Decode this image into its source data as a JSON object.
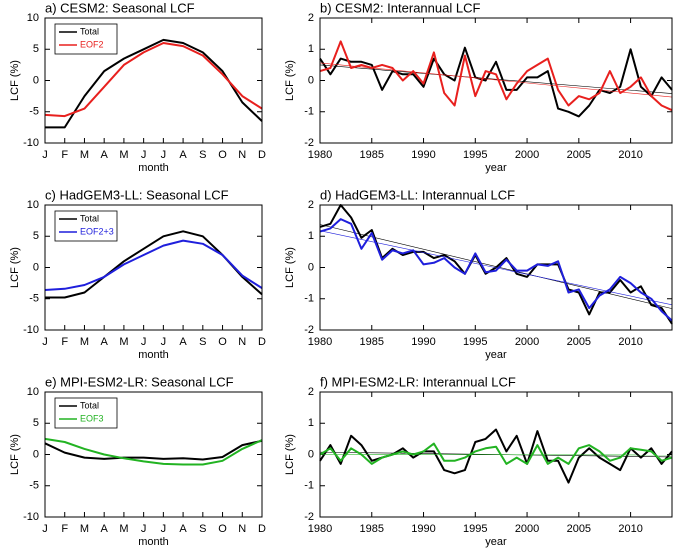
{
  "chart_data": [
    {
      "type": "line",
      "title": "a) CESM2: Seasonal LCF",
      "x_label": "month",
      "y_label": "LCF (%)",
      "categories": [
        "J",
        "F",
        "M",
        "A",
        "M",
        "J",
        "J",
        "A",
        "S",
        "O",
        "N",
        "D"
      ],
      "ylim": [
        -10,
        10
      ],
      "yticks": [
        -10,
        -5,
        0,
        5,
        10
      ],
      "series": [
        {
          "name": "Total",
          "color": "#000000",
          "values": [
            -7.5,
            -7.5,
            -2.5,
            1.5,
            3.5,
            5,
            6.5,
            6,
            4.5,
            1.5,
            -3.5,
            -6.5
          ]
        },
        {
          "name": "EOF2",
          "color": "#e8201e",
          "values": [
            -5.5,
            -5.7,
            -4.5,
            -1,
            2.5,
            4.5,
            6,
            5.5,
            4,
            1,
            -2.5,
            -4.5
          ]
        }
      ]
    },
    {
      "type": "line",
      "title": "b) CESM2: Interannual LCF",
      "x_label": "year",
      "y_label": "LCF (%)",
      "x": [
        1980,
        1981,
        1982,
        1983,
        1984,
        1985,
        1986,
        1987,
        1988,
        1989,
        1990,
        1991,
        1992,
        1993,
        1994,
        1995,
        1996,
        1997,
        1998,
        1999,
        2000,
        2001,
        2002,
        2003,
        2004,
        2005,
        2006,
        2007,
        2008,
        2009,
        2010,
        2011,
        2012,
        2013,
        2014
      ],
      "xlim": [
        1980,
        2014
      ],
      "xticks": [
        1980,
        1985,
        1990,
        1995,
        2000,
        2005,
        2010
      ],
      "ylim": [
        -2,
        2
      ],
      "yticks": [
        -2,
        -1,
        0,
        1,
        2
      ],
      "trend": true,
      "series": [
        {
          "color": "#000000",
          "values": [
            0.7,
            0.2,
            0.7,
            0.6,
            0.6,
            0.5,
            -0.3,
            0.3,
            0.2,
            0.2,
            -0.2,
            0.7,
            0.2,
            0.0,
            1.05,
            0.1,
            0.0,
            0.6,
            -0.3,
            -0.3,
            0.1,
            0.1,
            0.3,
            -0.9,
            -1.0,
            -1.15,
            -0.8,
            -0.3,
            -0.4,
            -0.2,
            1.0,
            -0.2,
            -0.5,
            0.1,
            -0.3
          ]
        },
        {
          "color": "#e8201e",
          "values": [
            0.3,
            0.4,
            1.25,
            0.4,
            0.5,
            0.4,
            0.5,
            0.4,
            0.0,
            0.3,
            -0.1,
            0.9,
            -0.4,
            -0.8,
            0.8,
            -0.5,
            0.3,
            0.2,
            -0.6,
            -0.1,
            0.3,
            0.5,
            0.7,
            -0.3,
            -0.8,
            -0.5,
            -0.6,
            -0.4,
            0.3,
            -0.4,
            -0.2,
            0.1,
            -0.5,
            -0.8,
            -0.95
          ]
        }
      ]
    },
    {
      "type": "line",
      "title": "c) HadGEM3-LL: Seasonal LCF",
      "x_label": "month",
      "y_label": "LCF (%)",
      "categories": [
        "J",
        "F",
        "M",
        "A",
        "M",
        "J",
        "J",
        "A",
        "S",
        "O",
        "N",
        "D"
      ],
      "ylim": [
        -10,
        10
      ],
      "yticks": [
        -10,
        -5,
        0,
        5,
        10
      ],
      "series": [
        {
          "name": "Total",
          "color": "#000000",
          "values": [
            -4.8,
            -4.8,
            -4,
            -1.5,
            1,
            3,
            5,
            5.8,
            5,
            2,
            -1.5,
            -4.3
          ]
        },
        {
          "name": "EOF2+3",
          "color": "#1f1fdc",
          "values": [
            -3.6,
            -3.4,
            -2.8,
            -1.5,
            0.5,
            2,
            3.5,
            4.3,
            3.8,
            2,
            -1.3,
            -3.3
          ]
        }
      ]
    },
    {
      "type": "line",
      "title": "d) HadGEM3-LL: Interannual LCF",
      "x_label": "year",
      "y_label": "LCF (%)",
      "x": [
        1980,
        1981,
        1982,
        1983,
        1984,
        1985,
        1986,
        1987,
        1988,
        1989,
        1990,
        1991,
        1992,
        1993,
        1994,
        1995,
        1996,
        1997,
        1998,
        1999,
        2000,
        2001,
        2002,
        2003,
        2004,
        2005,
        2006,
        2007,
        2008,
        2009,
        2010,
        2011,
        2012,
        2013,
        2014
      ],
      "xlim": [
        1980,
        2014
      ],
      "xticks": [
        1980,
        1985,
        1990,
        1995,
        2000,
        2005,
        2010
      ],
      "ylim": [
        -2,
        2
      ],
      "yticks": [
        -2,
        -1,
        0,
        1,
        2
      ],
      "trend": true,
      "series": [
        {
          "color": "#000000",
          "values": [
            1.3,
            1.4,
            2.0,
            1.6,
            0.95,
            1.2,
            0.3,
            0.6,
            0.4,
            0.5,
            0.5,
            0.3,
            0.4,
            0.2,
            -0.2,
            0.4,
            -0.2,
            0.0,
            0.3,
            -0.2,
            -0.3,
            0.1,
            0.1,
            0.1,
            -0.7,
            -0.8,
            -1.5,
            -0.8,
            -0.8,
            -0.4,
            -0.8,
            -0.6,
            -1.2,
            -1.3,
            -1.8
          ]
        },
        {
          "color": "#1f1fdc",
          "values": [
            1.15,
            1.25,
            1.55,
            1.4,
            0.6,
            1.1,
            0.25,
            0.55,
            0.45,
            0.55,
            0.1,
            0.15,
            0.3,
            0.0,
            -0.2,
            0.45,
            -0.15,
            -0.1,
            0.25,
            -0.1,
            -0.1,
            0.1,
            0.05,
            0.2,
            -0.8,
            -0.7,
            -1.3,
            -0.9,
            -0.7,
            -0.3,
            -0.5,
            -0.8,
            -1.0,
            -1.4,
            -1.7
          ]
        }
      ]
    },
    {
      "type": "line",
      "title": "e) MPI-ESM2-LR: Seasonal LCF",
      "x_label": "month",
      "y_label": "LCF (%)",
      "categories": [
        "J",
        "F",
        "M",
        "A",
        "M",
        "J",
        "J",
        "A",
        "S",
        "O",
        "N",
        "D"
      ],
      "ylim": [
        -10,
        10
      ],
      "yticks": [
        -10,
        -5,
        0,
        5,
        10
      ],
      "series": [
        {
          "name": "Total",
          "color": "#000000",
          "values": [
            1.8,
            0.3,
            -0.5,
            -0.7,
            -0.5,
            -0.5,
            -0.7,
            -0.6,
            -0.8,
            -0.4,
            1.5,
            2.2
          ]
        },
        {
          "name": "EOF3",
          "color": "#22b322",
          "values": [
            2.5,
            2,
            0.9,
            0,
            -0.6,
            -1.1,
            -1.5,
            -1.6,
            -1.6,
            -1,
            0.9,
            2.3
          ]
        }
      ]
    },
    {
      "type": "line",
      "title": "f) MPI-ESM2-LR: Interannual LCF",
      "x_label": "year",
      "y_label": "LCF (%)",
      "x": [
        1980,
        1981,
        1982,
        1983,
        1984,
        1985,
        1986,
        1987,
        1988,
        1989,
        1990,
        1991,
        1992,
        1993,
        1994,
        1995,
        1996,
        1997,
        1998,
        1999,
        2000,
        2001,
        2002,
        2003,
        2004,
        2005,
        2006,
        2007,
        2008,
        2009,
        2010,
        2011,
        2012,
        2013,
        2014
      ],
      "xlim": [
        1980,
        2014
      ],
      "xticks": [
        1980,
        1985,
        1990,
        1995,
        2000,
        2005,
        2010
      ],
      "ylim": [
        -2,
        2
      ],
      "yticks": [
        -2,
        -1,
        0,
        1,
        2
      ],
      "trend": true,
      "series": [
        {
          "color": "#000000",
          "values": [
            -0.2,
            0.3,
            -0.3,
            0.6,
            0.3,
            -0.2,
            -0.1,
            0.0,
            0.2,
            -0.1,
            0.1,
            0.1,
            -0.5,
            -0.6,
            -0.5,
            0.4,
            0.5,
            0.8,
            0.1,
            0.6,
            -0.3,
            0.75,
            -0.2,
            -0.2,
            -0.9,
            -0.1,
            0.2,
            -0.1,
            -0.3,
            -0.5,
            0.2,
            -0.1,
            0.2,
            -0.3,
            0.1
          ]
        },
        {
          "color": "#22b322",
          "values": [
            0.0,
            0.2,
            -0.2,
            0.2,
            0.0,
            -0.3,
            -0.1,
            0.0,
            0.1,
            0.0,
            0.1,
            0.35,
            -0.2,
            -0.2,
            -0.1,
            0.1,
            0.2,
            0.25,
            -0.3,
            -0.1,
            -0.3,
            0.3,
            -0.3,
            -0.1,
            -0.3,
            0.2,
            0.3,
            0.1,
            -0.2,
            -0.1,
            0.2,
            0.15,
            0.1,
            -0.2,
            -0.1
          ]
        }
      ]
    }
  ]
}
